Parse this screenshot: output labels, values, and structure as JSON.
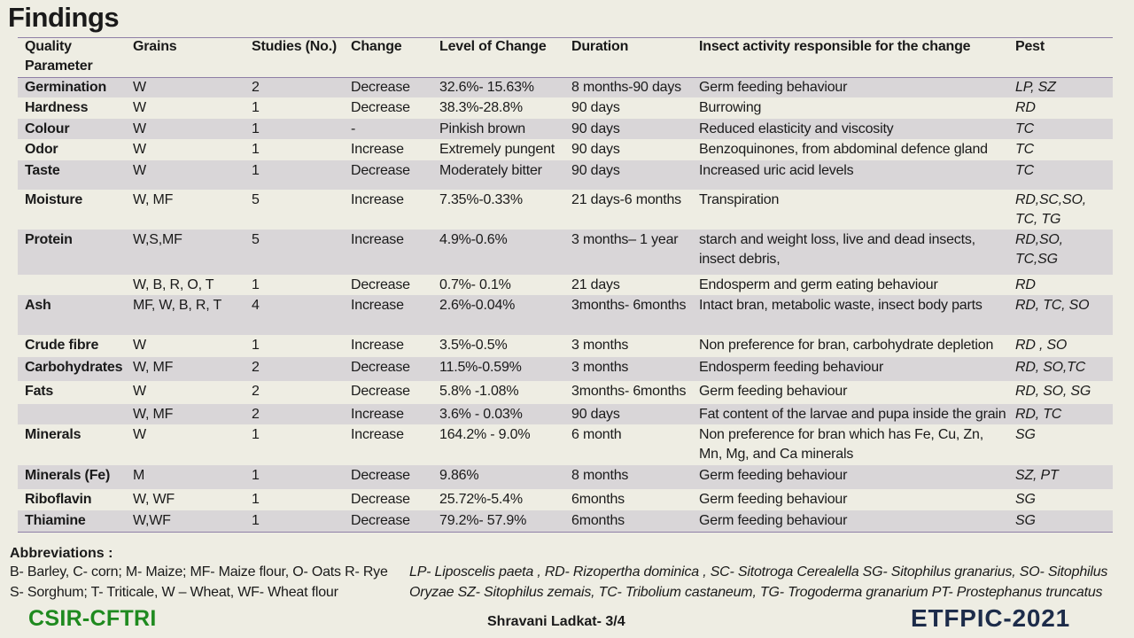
{
  "title": "Findings",
  "table": {
    "headers": [
      "Quality\nParameter",
      "Grains",
      "Studies (No.)",
      "Change",
      "Level of Change",
      "Duration",
      "Insect  activity responsible for the change",
      "Pest"
    ],
    "rows": [
      [
        "Germination",
        " W",
        "2",
        "Decrease",
        "32.6%- 15.63%",
        " 8 months-90 days",
        "Germ feeding behaviour",
        "LP, SZ"
      ],
      [
        "Hardness",
        " W",
        "1",
        "Decrease",
        "38.3%-28.8%",
        " 90 days",
        "Burrowing",
        " RD"
      ],
      [
        "Colour",
        " W",
        "1",
        " -",
        "Pinkish brown",
        " 90 days",
        "Reduced elasticity and viscosity",
        " TC"
      ],
      [
        "Odor",
        " W",
        "1",
        "Increase",
        "Extremely pungent",
        " 90 days",
        "Benzoquinones, from abdominal defence gland",
        " TC"
      ],
      [
        "Taste",
        " W",
        "1",
        "Decrease",
        "Moderately bitter",
        " 90 days",
        "Increased uric acid levels",
        "TC"
      ],
      [
        "Moisture",
        "W, MF",
        "5",
        "Increase",
        "7.35%-0.33%",
        " 21 days-6 months",
        "Transpiration",
        " RD,SC,SO,\nTC, TG"
      ],
      [
        "Protein",
        "W,S,MF",
        "5",
        " Increase",
        "4.9%-0.6%",
        "  3 months– 1 year",
        " starch and weight loss, live and dead insects,\ninsect debris,",
        " RD,SO,\nTC,SG"
      ],
      [
        "",
        "W, B, R, O, T",
        "1",
        "Decrease",
        "0.7%- 0.1%",
        "21 days",
        "Endosperm and germ eating behaviour",
        "RD"
      ],
      [
        "Ash",
        "MF, W, B, R,  T",
        "4",
        "Increase",
        "2.6%-0.04%",
        "3months- 6months",
        " Intact  bran, metabolic waste, insect body parts",
        " RD, TC, SO"
      ],
      [
        "Crude fibre",
        " W",
        "1",
        "Increase",
        "3.5%-0.5%",
        " 3 months",
        " Non preference for bran, carbohydrate depletion",
        " RD , SO"
      ],
      [
        "Carbohydrates",
        " W, MF",
        "2",
        "Decrease",
        "11.5%-0.59%",
        " 3 months",
        " Endosperm feeding behaviour",
        " RD, SO,TC"
      ],
      [
        "Fats",
        " W",
        "2",
        "Decrease",
        " 5.8% -1.08%",
        "3months- 6months",
        " Germ feeding behaviour",
        " RD, SO, SG"
      ],
      [
        "",
        "W, MF",
        "2",
        "Increase",
        "3.6% - 0.03%",
        "90 days",
        "Fat content of the larvae and pupa inside the grain",
        "RD, TC"
      ],
      [
        "Minerals",
        " W",
        "1",
        "Increase",
        " 164.2% - 9.0%",
        " 6 month",
        " Non preference for bran which has Fe, Cu, Zn,\nMn, Mg, and Ca minerals",
        " SG"
      ],
      [
        "Minerals (Fe)",
        "M",
        "1",
        "Decrease",
        "9.86%",
        "8 months",
        "Germ feeding behaviour",
        "SZ, PT"
      ],
      [
        "Riboflavin",
        " W, WF",
        "1",
        "Decrease",
        "25.72%-5.4%",
        "6months",
        " Germ feeding behaviour",
        " SG"
      ],
      [
        " Thiamine",
        "W,WF",
        "1",
        "Decrease",
        " 79.2%- 57.9%",
        "6months",
        " Germ feeding behaviour",
        " SG"
      ]
    ]
  },
  "abbreviations": {
    "title": "Abbreviations :",
    "text": "B- Barley, C- corn; M- Maize; MF- Maize flour,  O- Oats  R- Rye\nS- Sorghum; T- Triticale,  W – Wheat, WF- Wheat flour",
    "pests": "LP- Liposcelis paeta , RD- Rizopertha dominica , SC- Sitotroga Cerealella SG- Sitophilus granarius, SO- Sitophilus Oryzae SZ- Sitophilus zemais, TC- Tribolium castaneum, TG- Trogoderma granarium  PT- Prostephanus  truncatus"
  },
  "footer": {
    "org": "CSIR-CFTRI",
    "presenter": "Shravani Ladkat- 3/4",
    "conference": "ETFPIC-2021"
  }
}
